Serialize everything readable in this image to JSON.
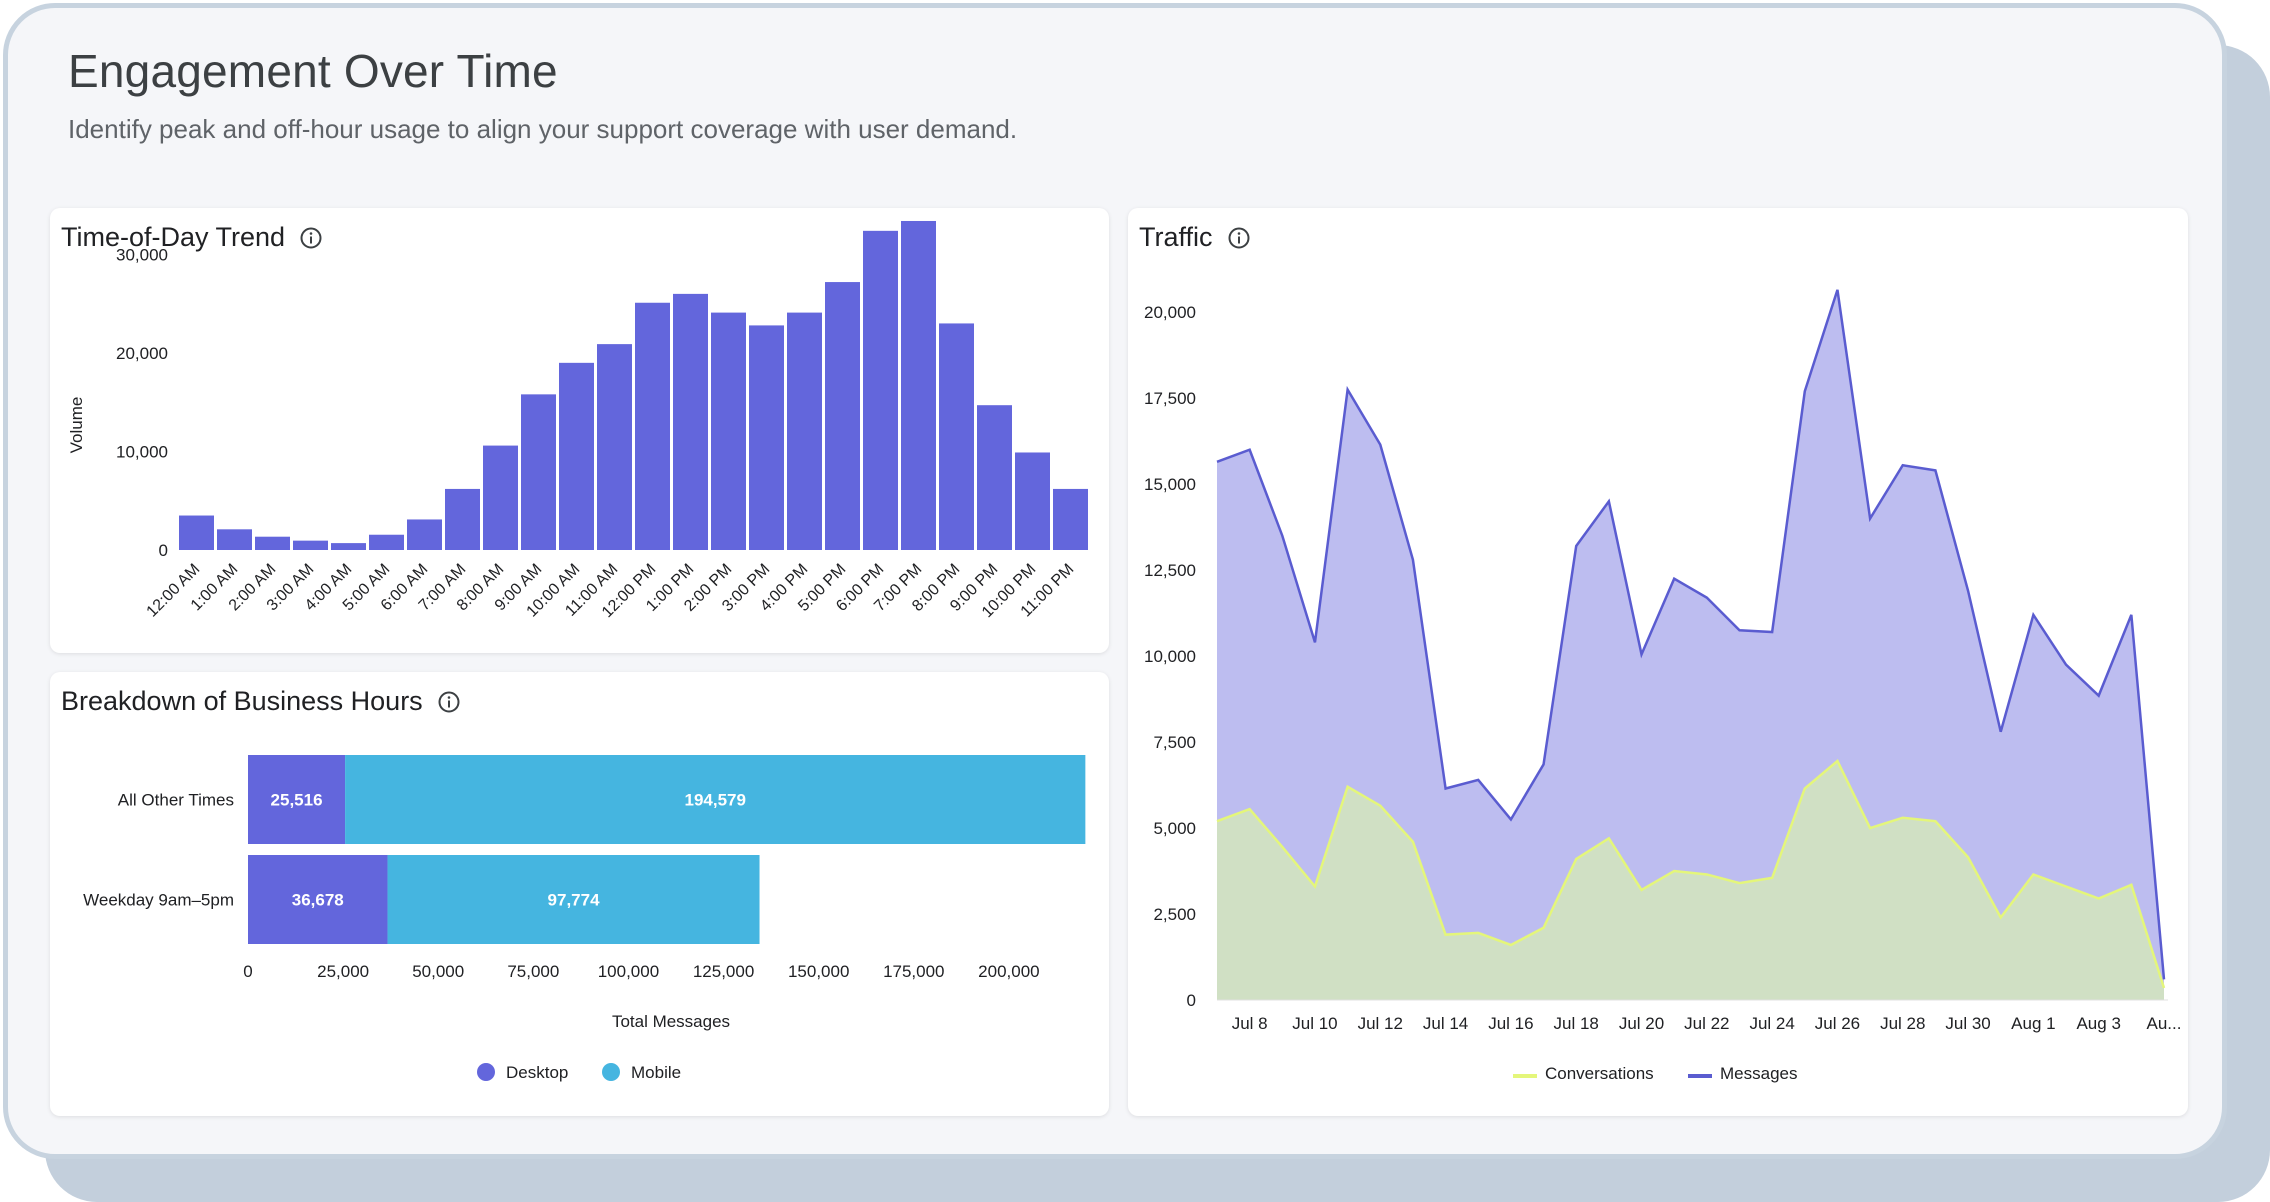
{
  "page": {
    "title": "Engagement Over Time",
    "subtitle": "Identify peak and off-hour usage to align your support coverage with user demand."
  },
  "colors": {
    "desktop": "#6366dc",
    "mobile": "#45b5e0",
    "messages_line": "#5a5cd0",
    "messages_fill": "#bdbdf0",
    "conversations_line": "#e4f67a",
    "conversations_fill": "#d0e0c4"
  },
  "chart_data": [
    {
      "type": "bar",
      "title": "Time-of-Day Trend",
      "ylabel": "Volume",
      "xlabel": "",
      "ylim": [
        0,
        33500
      ],
      "yticks": [
        0,
        10000,
        20000,
        30000
      ],
      "ytick_labels": [
        "0",
        "10,000",
        "20,000",
        "30,000"
      ],
      "categories": [
        "12:00 AM",
        "1:00 AM",
        "2:00 AM",
        "3:00 AM",
        "4:00 AM",
        "5:00 AM",
        "6:00 AM",
        "7:00 AM",
        "8:00 AM",
        "9:00 AM",
        "10:00 AM",
        "11:00 AM",
        "12:00 PM",
        "1:00 PM",
        "2:00 PM",
        "3:00 PM",
        "4:00 PM",
        "5:00 PM",
        "6:00 PM",
        "7:00 PM",
        "8:00 PM",
        "9:00 PM",
        "10:00 PM",
        "11:00 PM"
      ],
      "values": [
        3500,
        2100,
        1350,
        950,
        700,
        1550,
        3100,
        6200,
        10600,
        15800,
        19000,
        20900,
        25100,
        26000,
        24100,
        22800,
        24100,
        27200,
        32400,
        33400,
        23000,
        14700,
        9900,
        6200
      ],
      "grid": false,
      "legend": "none"
    },
    {
      "type": "bar",
      "orientation": "horizontal",
      "stacked": true,
      "title": "Breakdown of Business Hours",
      "xlabel": "Total Messages",
      "ylabel": "",
      "xlim": [
        0,
        220000
      ],
      "xticks": [
        0,
        25000,
        50000,
        75000,
        100000,
        125000,
        150000,
        175000,
        200000
      ],
      "xtick_labels": [
        "0",
        "25,000",
        "50,000",
        "75,000",
        "100,000",
        "125,000",
        "150,000",
        "175,000",
        "200,000"
      ],
      "categories": [
        "All Other Times",
        "Weekday 9am–5pm"
      ],
      "series": [
        {
          "name": "Desktop",
          "values": [
            25516,
            36678
          ],
          "labels": [
            "25,516",
            "36,678"
          ]
        },
        {
          "name": "Mobile",
          "values": [
            194579,
            97774
          ],
          "labels": [
            "194,579",
            "97,774"
          ]
        }
      ],
      "legend": "bottom-center",
      "grid": false
    },
    {
      "type": "area",
      "title": "Traffic",
      "xlabel": "",
      "ylabel": "",
      "ylim": [
        0,
        20500
      ],
      "yticks": [
        0,
        2500,
        5000,
        7500,
        10000,
        12500,
        15000,
        17500,
        20000
      ],
      "ytick_labels": [
        "0",
        "2,500",
        "5,000",
        "7,500",
        "10,000",
        "12,500",
        "15,000",
        "17,500",
        "20,000"
      ],
      "x": [
        "Jul 7",
        "Jul 8",
        "Jul 9",
        "Jul 10",
        "Jul 11",
        "Jul 12",
        "Jul 13",
        "Jul 14",
        "Jul 15",
        "Jul 16",
        "Jul 17",
        "Jul 18",
        "Jul 19",
        "Jul 20",
        "Jul 21",
        "Jul 22",
        "Jul 23",
        "Jul 24",
        "Jul 25",
        "Jul 26",
        "Jul 27",
        "Jul 28",
        "Jul 29",
        "Jul 30",
        "Jul 31",
        "Aug 1",
        "Aug 2",
        "Aug 3",
        "Aug 4",
        "Aug 5"
      ],
      "xtick_labels": [
        "Jul 8",
        "Jul 10",
        "Jul 12",
        "Jul 14",
        "Jul 16",
        "Jul 18",
        "Jul 20",
        "Jul 22",
        "Jul 24",
        "Jul 26",
        "Jul 28",
        "Jul 30",
        "Aug 1",
        "Aug 3",
        "Au..."
      ],
      "series": [
        {
          "name": "Messages",
          "values": [
            15650,
            16000,
            13500,
            10400,
            17750,
            16150,
            12800,
            6150,
            6400,
            5250,
            6850,
            13200,
            14500,
            10050,
            12250,
            11700,
            10750,
            10700,
            17700,
            20650,
            14000,
            15550,
            15400,
            11900,
            7800,
            11200,
            9750,
            8850,
            11200,
            600
          ]
        },
        {
          "name": "Conversations",
          "values": [
            5200,
            5550,
            4450,
            3300,
            6200,
            5650,
            4600,
            1900,
            1950,
            1600,
            2100,
            4100,
            4700,
            3200,
            3750,
            3650,
            3400,
            3550,
            6150,
            6950,
            5000,
            5300,
            5200,
            4150,
            2400,
            3650,
            3300,
            2950,
            3350,
            350
          ]
        }
      ],
      "legend": "bottom-center",
      "grid": false
    }
  ]
}
